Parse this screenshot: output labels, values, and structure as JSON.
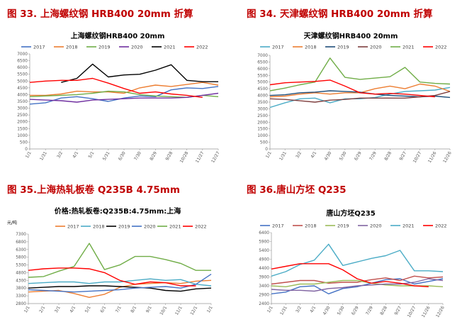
{
  "colors": {
    "heading": "#c00000",
    "s2017": "#4472c4",
    "s2018": "#ed7d31",
    "s2019": "#a5a5a5",
    "s2020": "#7030a0",
    "s2021": "#000000",
    "s2022": "#ff0000"
  },
  "headings": {
    "fig33": "图 33. 上海螺纹钢 HRB400 20mm 折算",
    "fig34": "图 34. 天津螺纹钢 HRB400 20mm 折算",
    "fig35": "图 35.上海热轧板卷 Q235B 4.75mm",
    "fig36": "图 36.唐山方坯 Q235"
  },
  "chart_data": [
    {
      "type": "line",
      "title": "上海螺纹钢HRB400 20mm",
      "ylim": [
        0,
        7000
      ],
      "yticks": [
        "0",
        "500",
        "1000",
        "1500",
        "2000",
        "2500",
        "3000",
        "3500",
        "4000",
        "4500",
        "5000",
        "5500",
        "6000",
        "6500",
        "7000"
      ],
      "x_ticks": [
        "1/1",
        "1/31",
        "3/2",
        "4/1",
        "5/1",
        "5/31",
        "6/30",
        "7/30",
        "8/29",
        "9/28",
        "10/28",
        "11/27",
        "12/27"
      ],
      "legend_position": "top",
      "grid": false,
      "series": [
        {
          "name": "2017",
          "color": "#4472c4",
          "values": [
            3300,
            3400,
            3750,
            3850,
            3700,
            3500,
            3750,
            3900,
            3850,
            4350,
            4500,
            4450,
            4600
          ]
        },
        {
          "name": "2018",
          "color": "#ed7d31",
          "values": [
            3950,
            3950,
            4050,
            4250,
            4200,
            4200,
            4100,
            4500,
            4700,
            4600,
            4750,
            4900,
            4700
          ]
        },
        {
          "name": "2019",
          "color": "#70ad47",
          "values": [
            3850,
            3900,
            3950,
            4000,
            4100,
            4250,
            4200,
            4000,
            3900,
            3850,
            3800,
            3950,
            3850
          ]
        },
        {
          "name": "2020",
          "color": "#7030a0",
          "values": [
            3650,
            3600,
            3550,
            3450,
            3600,
            3650,
            3700,
            3750,
            3750,
            3750,
            3800,
            3950,
            4100
          ]
        },
        {
          "name": "2021",
          "color": "#000000",
          "values": [
            null,
            null,
            4900,
            5200,
            6250,
            5300,
            5450,
            5500,
            5800,
            6200,
            5050,
            4950,
            4950
          ]
        },
        {
          "name": "2022",
          "color": "#ff0000",
          "values": [
            4900,
            5000,
            5050,
            5050,
            5200,
            4850,
            4450,
            4100,
            4200,
            4050,
            3950,
            3800,
            null
          ]
        }
      ]
    },
    {
      "type": "line",
      "title": "天津螺纹钢HRB400 20mm",
      "ylim": [
        0,
        7000
      ],
      "yticks": [
        "0",
        "500",
        "1000",
        "1500",
        "2000",
        "2500",
        "3000",
        "3500",
        "4000",
        "4500",
        "5000",
        "5500",
        "6000",
        "6500",
        "7000"
      ],
      "x_ticks": [
        "1/1",
        "1/31",
        "3/2",
        "4/1",
        "4/30",
        "5/30",
        "6/29",
        "7/29",
        "8/28",
        "9/27",
        "10/27",
        "11/26",
        "12/26"
      ],
      "legend_position": "top",
      "grid": false,
      "series": [
        {
          "name": "2017",
          "color": "#4bacc6",
          "values": [
            3100,
            3450,
            3750,
            3800,
            3450,
            3750,
            3750,
            3850,
            4100,
            4300,
            4350,
            4400,
            4600
          ]
        },
        {
          "name": "2018",
          "color": "#ed7d31",
          "values": [
            3900,
            3950,
            4100,
            4200,
            4100,
            4200,
            4200,
            4500,
            4700,
            4500,
            4850,
            4700,
            4300
          ]
        },
        {
          "name": "2019",
          "color": "#1f4e79",
          "values": [
            4000,
            4050,
            4200,
            4250,
            4350,
            4300,
            4250,
            4100,
            4000,
            3950,
            3900,
            3950,
            3850
          ]
        },
        {
          "name": "2020",
          "color": "#7f3f3f",
          "values": [
            3750,
            3700,
            3600,
            3500,
            3650,
            3700,
            3800,
            3800,
            3800,
            3800,
            3900,
            4000,
            4300
          ]
        },
        {
          "name": "2021",
          "color": "#70ad47",
          "values": [
            4350,
            4550,
            4800,
            5000,
            6800,
            5350,
            5200,
            5300,
            5400,
            6100,
            5000,
            4900,
            4850
          ]
        },
        {
          "name": "2022",
          "color": "#ff0000",
          "values": [
            4800,
            4950,
            5000,
            5050,
            5150,
            4700,
            4200,
            4100,
            4150,
            4100,
            4000,
            3900,
            null
          ]
        }
      ]
    },
    {
      "type": "line",
      "title": "价格:热轧板卷:Q235B:4.75mm:上海",
      "ylabel": "元/吨",
      "ylim": [
        2800,
        7300
      ],
      "yticks": [
        "2800",
        "3300",
        "3800",
        "4300",
        "4800",
        "5300",
        "5800",
        "6300",
        "6800",
        "7300"
      ],
      "x_ticks": [
        "1/1",
        "2/1",
        "3/1",
        "4/1",
        "5/1",
        "6/1",
        "7/1",
        "8/1",
        "9/1",
        "10/1",
        "11/1",
        "12/1",
        "1/1"
      ],
      "legend_position": "top",
      "grid": false,
      "series": [
        {
          "name": "2017",
          "color": "#ed7d31",
          "values": [
            3550,
            3600,
            3650,
            3450,
            3200,
            3400,
            3850,
            4050,
            4100,
            4150,
            4100,
            4250,
            4300
          ]
        },
        {
          "name": "2018",
          "color": "#4bacc6",
          "values": [
            4100,
            4150,
            4200,
            4200,
            4100,
            4200,
            4200,
            4300,
            4400,
            4300,
            4350,
            4050,
            3950
          ]
        },
        {
          "name": "2019",
          "color": "#000000",
          "values": [
            3800,
            3850,
            3900,
            3900,
            3950,
            3950,
            3900,
            3850,
            3800,
            3650,
            3600,
            3750,
            3800
          ]
        },
        {
          "name": "2020",
          "color": "#4472c4",
          "values": [
            3700,
            3650,
            3600,
            3550,
            3600,
            3650,
            3700,
            3800,
            3850,
            3900,
            3800,
            4050,
            4700
          ]
        },
        {
          "name": "2021",
          "color": "#70ad47",
          "values": [
            4500,
            4550,
            4900,
            5200,
            6700,
            5000,
            5300,
            5850,
            5850,
            5650,
            5400,
            4950,
            4950
          ]
        },
        {
          "name": "2022",
          "color": "#ff0000",
          "values": [
            4950,
            5050,
            5100,
            5100,
            5050,
            4800,
            4300,
            4050,
            4200,
            4150,
            3950,
            3950,
            null
          ]
        }
      ]
    },
    {
      "type": "line",
      "title": "唐山方坯Q235",
      "ylim": [
        2400,
        6400
      ],
      "yticks": [
        "2400",
        "2900",
        "3400",
        "3900",
        "4400",
        "4900",
        "5400",
        "5900",
        "6400"
      ],
      "x_ticks": [
        "1/1",
        "1/31",
        "3/2",
        "4/1",
        "4/30",
        "5/30",
        "6/29",
        "7/29",
        "8/28",
        "9/27",
        "10/27",
        "11/26",
        "12/26"
      ],
      "legend_position": "top",
      "grid": false,
      "series": [
        {
          "name": "2017",
          "color": "#4472c4",
          "values": [
            2950,
            3050,
            3350,
            3400,
            2950,
            3250,
            3350,
            3550,
            3750,
            3800,
            3500,
            3650,
            3800
          ]
        },
        {
          "name": "2018",
          "color": "#c0504d",
          "values": [
            3500,
            3600,
            3700,
            3700,
            3550,
            3600,
            3600,
            3750,
            3850,
            3700,
            3950,
            3850,
            3900
          ]
        },
        {
          "name": "2019",
          "color": "#9bbb59",
          "values": [
            3400,
            3350,
            3500,
            3500,
            3600,
            3700,
            3700,
            3550,
            3450,
            3400,
            3400,
            3400,
            3350
          ]
        },
        {
          "name": "2020",
          "color": "#8064a2",
          "values": [
            3200,
            3150,
            3150,
            3100,
            3250,
            3300,
            3400,
            3450,
            3500,
            3500,
            3600,
            3800,
            3700
          ]
        },
        {
          "name": "2021",
          "color": "#4bacc6",
          "values": [
            3950,
            4200,
            4600,
            4850,
            5750,
            4550,
            4750,
            4950,
            5100,
            5400,
            4250,
            4250,
            4200
          ]
        },
        {
          "name": "2022",
          "color": "#ff0000",
          "values": [
            4350,
            4500,
            4650,
            4650,
            4650,
            4300,
            3800,
            3550,
            3650,
            3550,
            3400,
            3350,
            null
          ]
        }
      ]
    }
  ]
}
